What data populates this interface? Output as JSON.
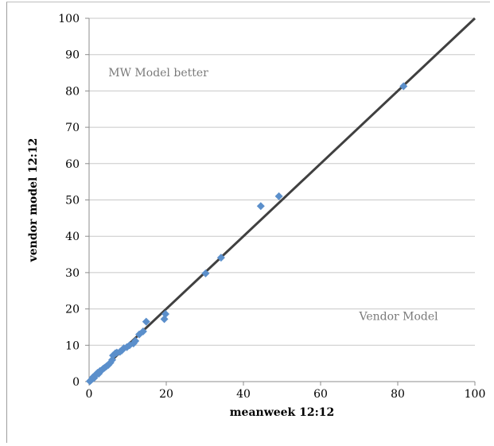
{
  "chart_data": {
    "type": "scatter",
    "xlabel": "meanweek 12:12",
    "ylabel": "vendor model 12:12",
    "xlim": [
      0,
      100
    ],
    "ylim": [
      0,
      100
    ],
    "xticks": [
      0,
      20,
      40,
      60,
      80,
      100
    ],
    "yticks": [
      0,
      10,
      20,
      30,
      40,
      50,
      60,
      70,
      80,
      90,
      100
    ],
    "grid": "horizontal",
    "reference_line": {
      "x": [
        0,
        100
      ],
      "y": [
        0,
        100
      ],
      "color": "#404040"
    },
    "marker_color": "#5b8fcb",
    "annotations": [
      {
        "text": "MW Model better",
        "x": 5,
        "y": 84
      },
      {
        "text": "Vendor Model",
        "x": 70,
        "y": 17
      }
    ],
    "points": [
      {
        "x": 0.2,
        "y": 0.1
      },
      {
        "x": 0.5,
        "y": 0.4
      },
      {
        "x": 0.8,
        "y": 0.7
      },
      {
        "x": 1.0,
        "y": 1.2
      },
      {
        "x": 1.3,
        "y": 1.0
      },
      {
        "x": 1.5,
        "y": 1.6
      },
      {
        "x": 1.8,
        "y": 2.0
      },
      {
        "x": 2.2,
        "y": 2.4
      },
      {
        "x": 2.5,
        "y": 2.2
      },
      {
        "x": 2.8,
        "y": 2.9
      },
      {
        "x": 3.2,
        "y": 3.1
      },
      {
        "x": 3.6,
        "y": 3.5
      },
      {
        "x": 4.0,
        "y": 3.8
      },
      {
        "x": 4.5,
        "y": 4.2
      },
      {
        "x": 5.0,
        "y": 4.6
      },
      {
        "x": 5.5,
        "y": 5.2
      },
      {
        "x": 6.0,
        "y": 6.0
      },
      {
        "x": 6.2,
        "y": 7.2
      },
      {
        "x": 6.8,
        "y": 7.8
      },
      {
        "x": 7.2,
        "y": 8.0
      },
      {
        "x": 8.0,
        "y": 8.2
      },
      {
        "x": 8.5,
        "y": 8.6
      },
      {
        "x": 9.0,
        "y": 9.2
      },
      {
        "x": 9.8,
        "y": 9.5
      },
      {
        "x": 10.5,
        "y": 10.0
      },
      {
        "x": 11.5,
        "y": 10.5
      },
      {
        "x": 12.0,
        "y": 11.2
      },
      {
        "x": 13.0,
        "y": 13.0
      },
      {
        "x": 14.0,
        "y": 13.8
      },
      {
        "x": 14.8,
        "y": 16.5
      },
      {
        "x": 19.5,
        "y": 17.2
      },
      {
        "x": 19.8,
        "y": 18.6
      },
      {
        "x": 30.2,
        "y": 29.8
      },
      {
        "x": 34.2,
        "y": 34.1
      },
      {
        "x": 44.5,
        "y": 48.3
      },
      {
        "x": 49.2,
        "y": 51.0
      },
      {
        "x": 81.5,
        "y": 81.3
      }
    ]
  }
}
